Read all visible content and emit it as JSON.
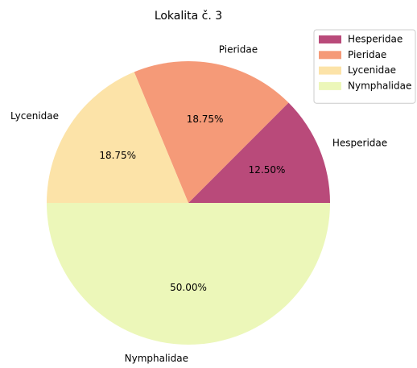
{
  "chart_data": {
    "type": "pie",
    "title": "Lokalita č. 3",
    "categories": [
      "Hesperidae",
      "Pieridae",
      "Lycenidae",
      "Nymphalidae"
    ],
    "values": [
      12.5,
      18.75,
      18.75,
      50
    ],
    "value_labels": [
      "12.50%",
      "18.75%",
      "18.75%",
      "50.00%"
    ],
    "colors": [
      "#b94a7a",
      "#f59a78",
      "#fce3a8",
      "#ecf7b9"
    ],
    "legend": "upper right"
  }
}
